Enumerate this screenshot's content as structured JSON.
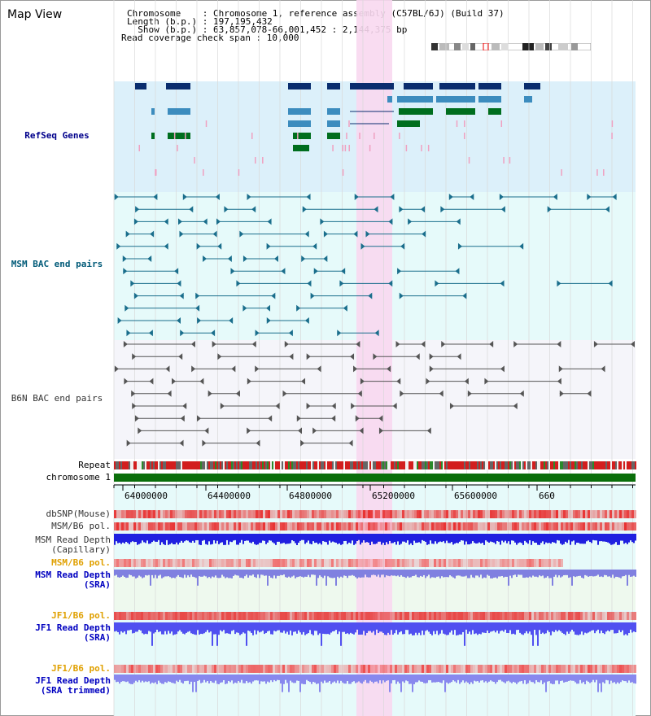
{
  "page": {
    "title": "Map View"
  },
  "info": {
    "chromosome": "Chromosome    : Chromosome 1, reference assembly (C57BL/6J) (Build 37)",
    "length": "Length (b.p.) : 197,195,432",
    "show": "  Show (b.p.) : 63,857,078-66,001,452 : 2,144,375 bp",
    "coverage": "Read coverage check span : 10,000"
  },
  "tracks": {
    "refseq": "RefSeq Genes",
    "msm_bac": "MSM BAC end pairs",
    "b6n_bac": "B6N BAC end pairs",
    "repeat": "Repeat",
    "chromosome": "chromosome 1",
    "dbsnp": "dbSNP(Mouse)",
    "msm_b6_pol": "MSM/B6 pol.",
    "msm_read_depth_1": "MSM Read Depth",
    "msm_read_depth_2": "(Capillary)",
    "msm_b6_pol_orange": "MSM/B6 pol.",
    "msm_sra_1": "MSM Read Depth",
    "msm_sra_2": "(SRA)",
    "jf1_b6_pol_1": "JF1/B6 pol.",
    "jf1_depth_1": "JF1 Read Depth",
    "jf1_depth_2": "(SRA)",
    "jf1_b6_pol_2": "JF1/B6 pol.",
    "jf1_trim_1": "JF1 Read Depth",
    "jf1_trim_2": "(SRA trimmed)"
  },
  "axis": {
    "ticks": [
      "64000000",
      "64400000",
      "64800000",
      "65200000",
      "65600000",
      "660"
    ]
  },
  "colors": {
    "refseq_bg": "#dcf0fa",
    "msm_bg": "#e6fafa",
    "b6n_bg": "#f5f5fa",
    "highlight": "#f8d8f0",
    "gene_dark": "#0a2d6e",
    "gene_mid": "#3c8cbe",
    "gene_green": "#006e1e",
    "chromosome": "#0a6e0a"
  }
}
